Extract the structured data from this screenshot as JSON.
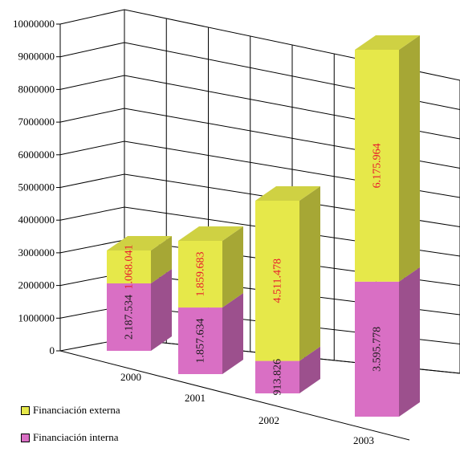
{
  "chart_data": {
    "type": "bar",
    "stacked": true,
    "three_d": true,
    "categories": [
      "2000",
      "2001",
      "2002",
      "2003"
    ],
    "series": [
      {
        "name": "Financiación interna",
        "values": [
          2187534,
          1857634,
          913826,
          3595778
        ],
        "labels": [
          "2.187.534",
          "1.857.634",
          "913.826",
          "3.595.778"
        ],
        "color": "#d96fc4",
        "label_color": "#1a1a1a"
      },
      {
        "name": "Financiación externa",
        "values": [
          1068041,
          1859683,
          4511478,
          6175964
        ],
        "labels": [
          "1.068.041",
          "1.859.683",
          "4.511.478",
          "6.175.964"
        ],
        "color": "#e6e84a",
        "label_color": "#e8192c"
      }
    ],
    "yticks": [
      "0",
      "1000000",
      "2000000",
      "3000000",
      "4000000",
      "5000000",
      "6000000",
      "7000000",
      "8000000",
      "9000000",
      "10000000"
    ],
    "ylim": [
      0,
      10000000
    ],
    "grid": true,
    "legend_position": "bottom-left",
    "title": "",
    "xlabel": "",
    "ylabel": ""
  }
}
